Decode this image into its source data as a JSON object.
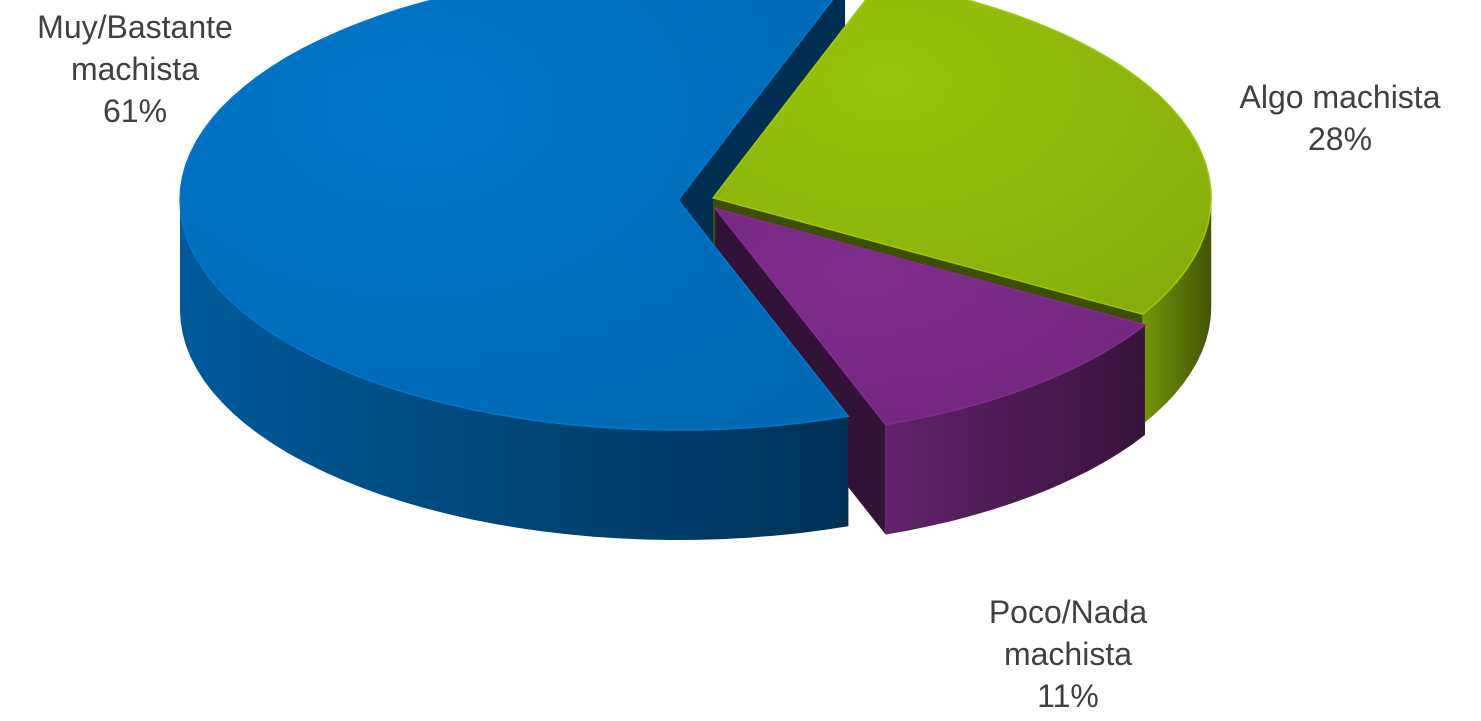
{
  "chart_data": {
    "type": "pie",
    "style": "3d-exploded",
    "categories": [
      "Muy/Bastante machista",
      "Algo machista",
      "Poco/Nada machista"
    ],
    "values": [
      61,
      28,
      11
    ],
    "value_labels": [
      "61%",
      "28%",
      "11%"
    ],
    "label_lines": [
      [
        "Muy/Bastante",
        "machista"
      ],
      [
        "Algo machista"
      ],
      [
        "Poco/Nada",
        "machista"
      ]
    ],
    "colors": [
      "#0070C0",
      "#92BA0C",
      "#7A2A86"
    ],
    "title": "",
    "legend": "none"
  }
}
